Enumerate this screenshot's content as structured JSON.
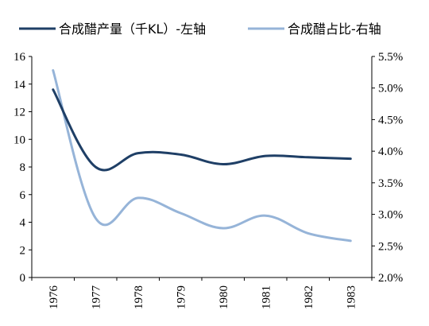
{
  "chart_data": {
    "type": "line",
    "categories": [
      "1976",
      "1977",
      "1978",
      "1979",
      "1980",
      "1981",
      "1982",
      "1983"
    ],
    "series": [
      {
        "name": "合成醋产量（千KL）-左轴",
        "axis": "left",
        "color": "#1f3f66",
        "values": [
          13.6,
          8.0,
          9.0,
          8.9,
          8.2,
          8.8,
          8.7,
          8.6
        ]
      },
      {
        "name": "合成醋占比-右轴",
        "axis": "right",
        "color": "#96b4d8",
        "values": [
          5.28,
          2.94,
          3.26,
          3.02,
          2.78,
          2.98,
          2.7,
          2.58
        ]
      }
    ],
    "y_left": {
      "min": 0,
      "max": 16,
      "step": 2,
      "tick_labels": [
        "0",
        "2",
        "4",
        "6",
        "8",
        "10",
        "12",
        "14",
        "16"
      ]
    },
    "y_right": {
      "min": 2.0,
      "max": 5.5,
      "step": 0.5,
      "tick_labels": [
        "2.0%",
        "2.5%",
        "3.0%",
        "3.5%",
        "4.0%",
        "4.5%",
        "5.0%",
        "5.5%"
      ]
    },
    "legend_position": "top",
    "grid": false
  }
}
